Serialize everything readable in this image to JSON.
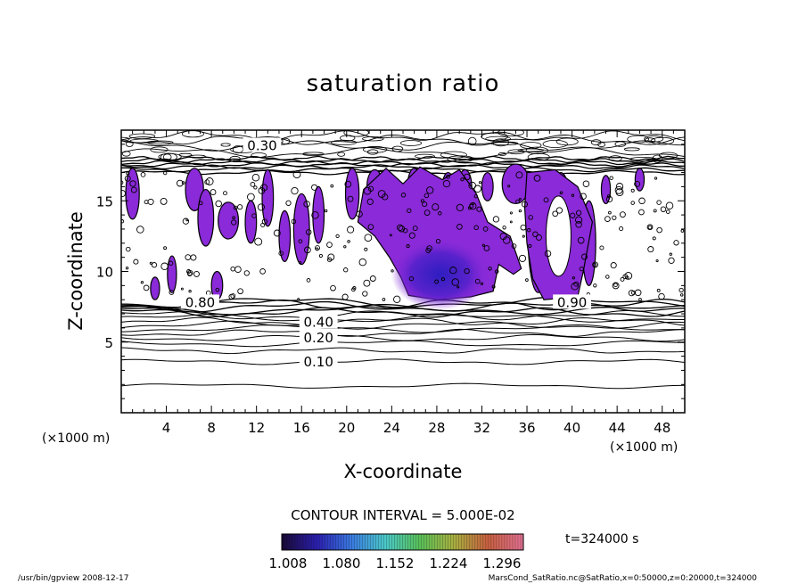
{
  "chart_data": {
    "type": "contour",
    "title": "saturation ratio",
    "xlabel": "X-coordinate",
    "ylabel": "Z-coordinate",
    "x_unit": "(×1000 m)",
    "y_unit": "(×1000 m)",
    "xlim": [
      0,
      50
    ],
    "ylim": [
      0,
      20
    ],
    "x_ticks": [
      4,
      8,
      12,
      16,
      20,
      24,
      28,
      32,
      36,
      40,
      44,
      48
    ],
    "y_ticks": [
      5,
      10,
      15
    ],
    "contour_interval_label": "CONTOUR INTERVAL = 5.000E-02",
    "time_label": "t=324000 s",
    "contour_labels": [
      {
        "text": "0.30",
        "x": 12.5,
        "z": 18.9
      },
      {
        "text": "0.10",
        "x": 17.5,
        "z": 3.6
      },
      {
        "text": "0.20",
        "x": 17.5,
        "z": 5.3
      },
      {
        "text": "0.40",
        "x": 17.5,
        "z": 6.4
      },
      {
        "text": "0.80",
        "x": 7.0,
        "z": 7.8
      },
      {
        "text": "0.90",
        "x": 40.0,
        "z": 7.8
      }
    ],
    "colorbar": {
      "tick_labels": [
        "1.008",
        "1.080",
        "1.152",
        "1.224",
        "1.296"
      ],
      "colors": [
        "#1a0a3a",
        "#2a1fb0",
        "#3a7ae0",
        "#4ac8c8",
        "#58c058",
        "#a8b040",
        "#c86040",
        "#e07090"
      ]
    },
    "shading_color": "#8a2ad8",
    "shading_dark": "#3e1dc8"
  },
  "footer": {
    "left": "/usr/bin/gpview  2008-12-17",
    "right": "MarsCond_SatRatio.nc@SatRatio,x=0:50000,z=0:20000,t=324000"
  }
}
